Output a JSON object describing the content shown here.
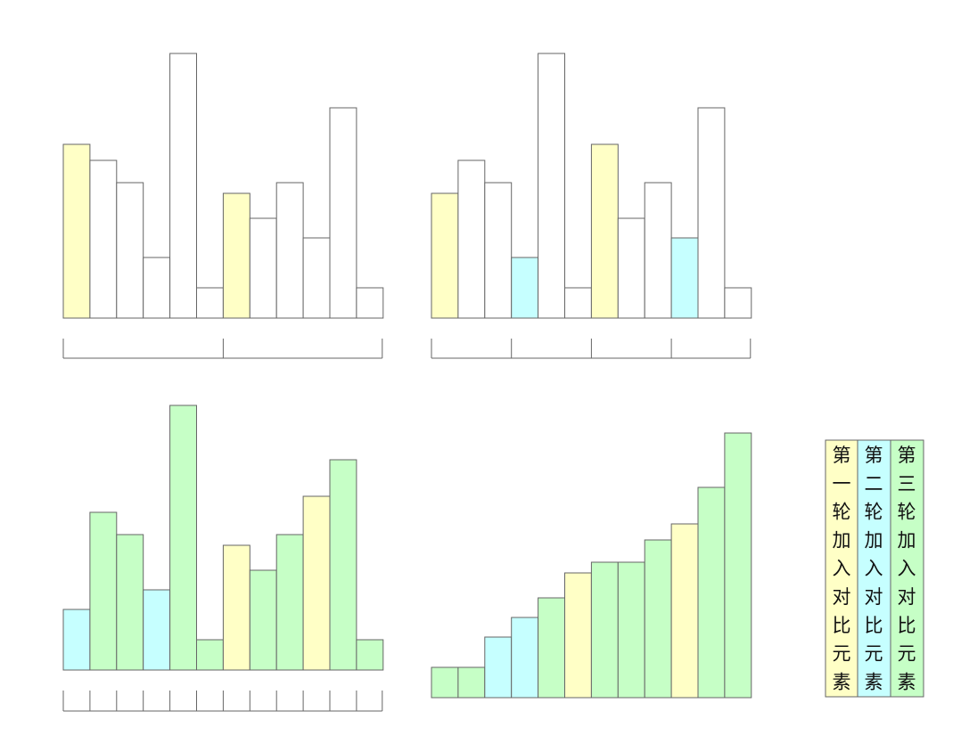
{
  "colors": {
    "empty": "#ffffff",
    "round1": "#ffffc6",
    "round2": "#c6ffff",
    "round3": "#c6ffc6",
    "stroke": "#666666"
  },
  "stages": [
    {
      "id": "stage-1",
      "values": [
        195,
        177,
        152,
        68,
        297,
        34,
        140,
        112,
        152,
        90,
        236,
        34
      ],
      "colors": [
        "round1",
        "empty",
        "empty",
        "empty",
        "empty",
        "empty",
        "round1",
        "empty",
        "empty",
        "empty",
        "empty",
        "empty"
      ],
      "groups": [
        6,
        6
      ]
    },
    {
      "id": "stage-2",
      "values": [
        140,
        177,
        152,
        68,
        297,
        34,
        195,
        112,
        152,
        90,
        236,
        34
      ],
      "colors": [
        "round1",
        "empty",
        "empty",
        "round2",
        "empty",
        "empty",
        "round1",
        "empty",
        "empty",
        "round2",
        "empty",
        "empty"
      ],
      "groups": [
        3,
        3,
        3,
        3
      ]
    },
    {
      "id": "stage-3",
      "values": [
        68,
        177,
        152,
        90,
        297,
        34,
        140,
        112,
        152,
        195,
        236,
        34
      ],
      "colors": [
        "round2",
        "round3",
        "round3",
        "round2",
        "round3",
        "round3",
        "round1",
        "round3",
        "round3",
        "round1",
        "round3",
        "round3"
      ],
      "groups": [
        1,
        1,
        1,
        1,
        1,
        1,
        1,
        1,
        1,
        1,
        1,
        1
      ]
    },
    {
      "id": "stage-4",
      "values": [
        34,
        34,
        68,
        90,
        112,
        140,
        152,
        152,
        177,
        195,
        236,
        297
      ],
      "colors": [
        "round3",
        "round3",
        "round2",
        "round2",
        "round3",
        "round1",
        "round3",
        "round3",
        "round3",
        "round1",
        "round3",
        "round3"
      ],
      "groups": []
    }
  ],
  "legend": [
    {
      "text": "第一轮加入对比元素",
      "color": "round1"
    },
    {
      "text": "第二轮加入对比元素",
      "color": "round2"
    },
    {
      "text": "第三轮加入对比元素",
      "color": "round3"
    }
  ]
}
